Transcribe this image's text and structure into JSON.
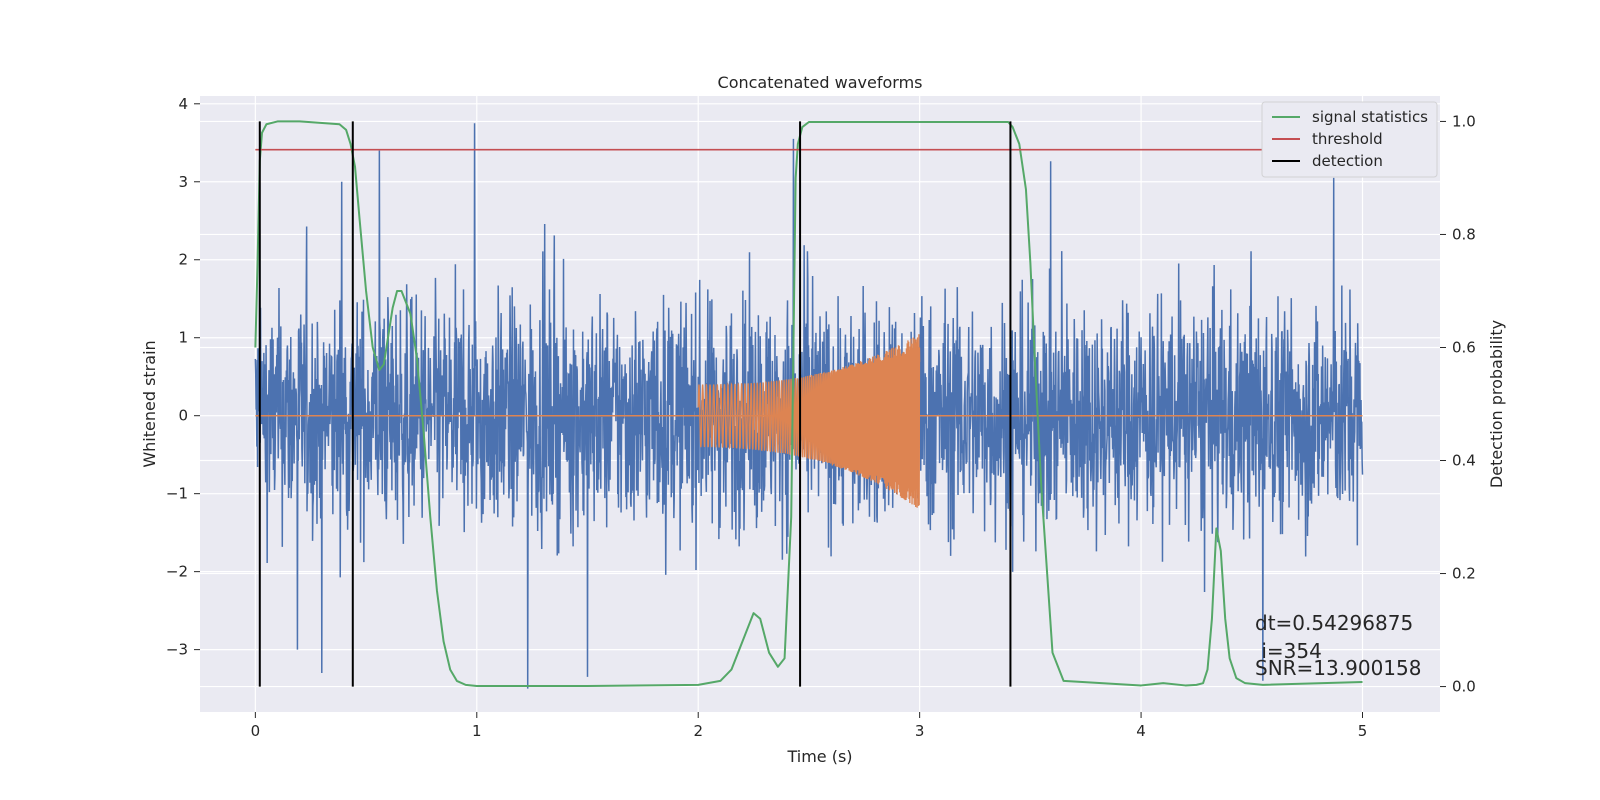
{
  "chart_data": {
    "type": "line",
    "title": "Concatenated waveforms",
    "xlabel": "Time (s)",
    "ylabel": "Whitened strain",
    "y2label": "Detection probability",
    "xlim": [
      -0.25,
      5.35
    ],
    "ylim": [
      -3.8,
      4.1
    ],
    "y2lim": [
      -0.045,
      1.045
    ],
    "xticks": [
      0,
      1,
      2,
      3,
      4,
      5
    ],
    "xtick_labels": [
      "0",
      "1",
      "2",
      "3",
      "4",
      "5"
    ],
    "yticks": [
      -3,
      -2,
      -1,
      0,
      1,
      2,
      3,
      4
    ],
    "ytick_labels": [
      "−3",
      "−2",
      "−1",
      "0",
      "1",
      "2",
      "3",
      "4"
    ],
    "y2ticks": [
      0.0,
      0.2,
      0.4,
      0.6,
      0.8,
      1.0
    ],
    "y2tick_labels": [
      "0.0",
      "0.2",
      "0.4",
      "0.6",
      "0.8",
      "1.0"
    ],
    "grid": true,
    "legend_position": "top-right",
    "noise": {
      "color": "#4c72b0",
      "x_range": [
        0,
        5
      ],
      "amplitude_typical": 1.8,
      "peaks": [
        {
          "x": 0.02,
          "y": 2.4
        },
        {
          "x": 0.3,
          "y": 2.3
        },
        {
          "x": 0.39,
          "y": 3.0
        },
        {
          "x": 0.56,
          "y": 3.4
        },
        {
          "x": 0.99,
          "y": 3.75
        },
        {
          "x": 1.23,
          "y": -3.5
        },
        {
          "x": 1.5,
          "y": -3.35
        },
        {
          "x": 2.43,
          "y": 3.55
        },
        {
          "x": 4.55,
          "y": -3.4
        },
        {
          "x": 4.87,
          "y": 3.05
        },
        {
          "x": 0.19,
          "y": -3.0
        },
        {
          "x": 0.3,
          "y": -3.3
        }
      ]
    },
    "injection": {
      "color": "#dd8452",
      "x_start": 2.0,
      "x_end": 3.0,
      "amp_start": 0.4,
      "amp_peak": 1.05,
      "amp_min_end": -1.2
    },
    "series": [
      {
        "name": "signal statistics",
        "color": "#55a868",
        "x": [
          0.0,
          0.01,
          0.02,
          0.03,
          0.05,
          0.1,
          0.2,
          0.38,
          0.41,
          0.43,
          0.45,
          0.47,
          0.5,
          0.53,
          0.56,
          0.58,
          0.6,
          0.62,
          0.64,
          0.66,
          0.7,
          0.73,
          0.76,
          0.79,
          0.82,
          0.85,
          0.88,
          0.91,
          0.95,
          1.0,
          1.5,
          2.0,
          2.1,
          2.15,
          2.2,
          2.25,
          2.28,
          2.32,
          2.36,
          2.39,
          2.42,
          2.44,
          2.45,
          2.47,
          2.5,
          3.4,
          3.42,
          3.45,
          3.48,
          3.5,
          3.52,
          3.55,
          3.6,
          3.65,
          4.0,
          4.1,
          4.2,
          4.25,
          4.28,
          4.3,
          4.32,
          4.34,
          4.36,
          4.38,
          4.4,
          4.43,
          4.47,
          4.55,
          5.0
        ],
        "y": [
          0.6,
          0.75,
          0.93,
          0.98,
          0.995,
          1.0,
          1.0,
          0.995,
          0.985,
          0.96,
          0.92,
          0.83,
          0.7,
          0.6,
          0.56,
          0.57,
          0.62,
          0.67,
          0.7,
          0.7,
          0.66,
          0.58,
          0.45,
          0.3,
          0.17,
          0.08,
          0.03,
          0.01,
          0.003,
          0.001,
          0.001,
          0.003,
          0.01,
          0.03,
          0.08,
          0.13,
          0.12,
          0.06,
          0.035,
          0.05,
          0.3,
          0.9,
          0.96,
          0.99,
          0.999,
          0.999,
          0.99,
          0.96,
          0.88,
          0.75,
          0.58,
          0.35,
          0.06,
          0.01,
          0.002,
          0.006,
          0.002,
          0.003,
          0.006,
          0.03,
          0.12,
          0.28,
          0.24,
          0.12,
          0.05,
          0.015,
          0.006,
          0.003,
          0.008
        ]
      },
      {
        "name": "threshold",
        "color": "#c44e52",
        "x": [
          0,
          5.05
        ],
        "y": [
          0.95,
          0.95
        ]
      },
      {
        "name": "detection",
        "color": "#000000",
        "x": [
          0.02,
          0.44,
          2.46,
          3.41
        ],
        "y_range": [
          0,
          1
        ]
      }
    ],
    "annotations": [
      "dt=0.54296875",
      " i=354",
      "SNR=13.900158"
    ]
  }
}
